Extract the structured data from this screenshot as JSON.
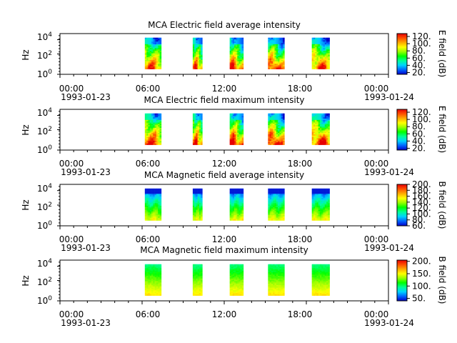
{
  "chart_data": [
    {
      "type": "heatmap",
      "title": "MCA  Electric field average intensity",
      "ylabel": "Hz",
      "colorbar_label": "E field (dB)",
      "colorbar_range": [
        15,
        128
      ],
      "colorbar_ticks": [
        20,
        40,
        60,
        80,
        100,
        120
      ],
      "colorbar_tick_labels": [
        "20.",
        "40.",
        "60.",
        "80.",
        "100.",
        "120."
      ],
      "y_scale": "log",
      "y_ticks": [
        "10^4",
        "10^2",
        "10^0"
      ],
      "x_range_hours": [
        0,
        24
      ],
      "x_ticks": [
        {
          "time": "00:00",
          "date": "1993-01-23",
          "hour": 0
        },
        {
          "time": "06:00",
          "date": "",
          "hour": 6
        },
        {
          "time": "12:00",
          "date": "",
          "hour": 12
        },
        {
          "time": "18:00",
          "date": "",
          "hour": 18
        },
        {
          "time": "00:00",
          "date": "1993-01-24",
          "hour": 24
        }
      ],
      "data_blocks_hours": [
        [
          6.2,
          7.4
        ],
        [
          9.7,
          10.4
        ],
        [
          12.4,
          13.4
        ],
        [
          15.2,
          16.4
        ],
        [
          18.4,
          19.7
        ]
      ],
      "block_pattern": "electric"
    },
    {
      "type": "heatmap",
      "title": "MCA  Electric field maximum intensity",
      "ylabel": "Hz",
      "colorbar_label": "E field (dB)",
      "colorbar_range": [
        15,
        128
      ],
      "colorbar_ticks": [
        20,
        40,
        60,
        80,
        100,
        120
      ],
      "colorbar_tick_labels": [
        "20.",
        "40.",
        "60.",
        "80.",
        "100.",
        "120."
      ],
      "y_scale": "log",
      "y_ticks": [
        "10^4",
        "10^2",
        "10^0"
      ],
      "x_range_hours": [
        0,
        24
      ],
      "x_ticks": [
        {
          "time": "00:00",
          "date": "1993-01-23",
          "hour": 0
        },
        {
          "time": "06:00",
          "date": "",
          "hour": 6
        },
        {
          "time": "12:00",
          "date": "",
          "hour": 12
        },
        {
          "time": "18:00",
          "date": "",
          "hour": 18
        },
        {
          "time": "00:00",
          "date": "1993-01-24",
          "hour": 24
        }
      ],
      "data_blocks_hours": [
        [
          6.2,
          7.4
        ],
        [
          9.7,
          10.4
        ],
        [
          12.4,
          13.4
        ],
        [
          15.2,
          16.4
        ],
        [
          18.4,
          19.7
        ]
      ],
      "block_pattern": "electric"
    },
    {
      "type": "heatmap",
      "title": "MCA  Magnetic field average intensity",
      "ylabel": "Hz",
      "colorbar_label": "B field (dB)",
      "colorbar_range": [
        60,
        200
      ],
      "colorbar_ticks": [
        60,
        80,
        100,
        120,
        140,
        160,
        180,
        200
      ],
      "colorbar_tick_labels": [
        "60.",
        "80.",
        "100.",
        "120.",
        "140.",
        "160.",
        "180.",
        "200."
      ],
      "y_scale": "log",
      "y_ticks": [
        "10^4",
        "10^2",
        "10^0"
      ],
      "x_range_hours": [
        0,
        24
      ],
      "x_ticks": [
        {
          "time": "00:00",
          "date": "1993-01-23",
          "hour": 0
        },
        {
          "time": "06:00",
          "date": "",
          "hour": 6
        },
        {
          "time": "12:00",
          "date": "",
          "hour": 12
        },
        {
          "time": "18:00",
          "date": "",
          "hour": 18
        },
        {
          "time": "00:00",
          "date": "1993-01-24",
          "hour": 24
        }
      ],
      "data_blocks_hours": [
        [
          6.2,
          7.4
        ],
        [
          9.7,
          10.4
        ],
        [
          12.4,
          13.4
        ],
        [
          15.2,
          16.4
        ],
        [
          18.4,
          19.7
        ]
      ],
      "block_pattern": "magnetic"
    },
    {
      "type": "heatmap",
      "title": "MCA  Magnetic field maximum intensity",
      "ylabel": "Hz",
      "colorbar_label": "B field (dB)",
      "colorbar_range": [
        40,
        205
      ],
      "colorbar_ticks": [
        50,
        100,
        150,
        200
      ],
      "colorbar_tick_labels": [
        "50.",
        "100.",
        "150.",
        "200."
      ],
      "y_scale": "log",
      "y_ticks": [
        "10^4",
        "10^2",
        "10^0"
      ],
      "x_range_hours": [
        0,
        24
      ],
      "x_ticks": [
        {
          "time": "00:00",
          "date": "1993-01-23",
          "hour": 0
        },
        {
          "time": "06:00",
          "date": "",
          "hour": 6
        },
        {
          "time": "12:00",
          "date": "",
          "hour": 12
        },
        {
          "time": "18:00",
          "date": "",
          "hour": 18
        },
        {
          "time": "00:00",
          "date": "1993-01-24",
          "hour": 24
        }
      ],
      "data_blocks_hours": [
        [
          6.2,
          7.4
        ],
        [
          9.7,
          10.4
        ],
        [
          12.4,
          13.4
        ],
        [
          15.2,
          16.4
        ],
        [
          18.4,
          19.7
        ]
      ],
      "block_pattern": "magnetic"
    }
  ],
  "colormap": [
    "#0000c8",
    "#0064ff",
    "#00d2ff",
    "#00ff96",
    "#00ff00",
    "#96ff00",
    "#ffff00",
    "#ffaa00",
    "#ff5000",
    "#e60000"
  ]
}
